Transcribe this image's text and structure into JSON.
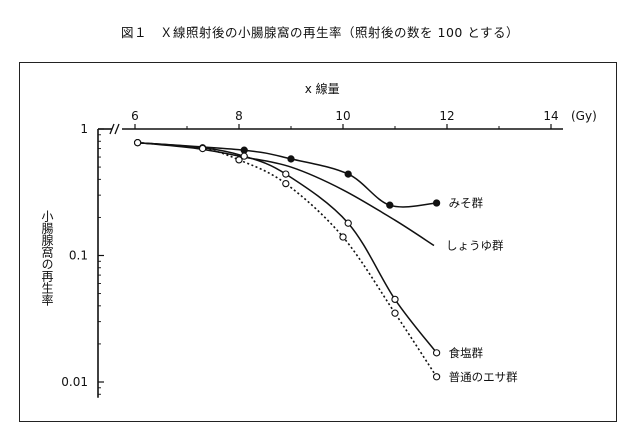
{
  "figure_title": "図１　Ｘ線照射後の小腸腺窩の再生率（照射後の数を 100 とする）",
  "chart_data": {
    "type": "line",
    "title": "図１　Ｘ線照射後の小腸腺窩の再生率（照射後の数を 100 とする）",
    "xlabel": "x 線量",
    "xunit": "(Gy)",
    "ylabel": "小腸腺窩の再生率",
    "xlim": [
      6,
      14
    ],
    "ylim": [
      0.0075,
      1
    ],
    "y_scale": "log",
    "axis_break": "x-axis between 0 and 6",
    "x_ticks": [
      6,
      8,
      10,
      12,
      14
    ],
    "x_tick_labels": [
      "6",
      "8",
      "10",
      "12",
      "14"
    ],
    "y_ticks": [
      1,
      0.1,
      0.01
    ],
    "y_tick_labels": [
      "1",
      "0.1",
      "0.01"
    ],
    "grid": false,
    "legend": "labels at line ends",
    "series": [
      {
        "name": "みそ群",
        "marker": "filled",
        "line": "solid",
        "x": [
          6.05,
          8.1,
          9.0,
          10.1,
          10.9,
          11.8
        ],
        "y": [
          0.78,
          0.68,
          0.58,
          0.44,
          0.25,
          0.26
        ]
      },
      {
        "name": "しょうゆ群",
        "marker": "none",
        "line": "solid",
        "x": [
          6.05,
          7.2,
          8.1,
          9.0,
          10.0,
          11.0,
          11.75
        ],
        "y": [
          0.78,
          0.7,
          0.6,
          0.5,
          0.33,
          0.19,
          0.12
        ]
      },
      {
        "name": "食塩群",
        "marker": "open",
        "line": "solid",
        "x": [
          6.05,
          7.3,
          8.1,
          8.9,
          10.1,
          11.0,
          11.8
        ],
        "y": [
          0.78,
          0.71,
          0.61,
          0.44,
          0.18,
          0.045,
          0.017
        ]
      },
      {
        "name": "普通のエサ群",
        "marker": "open",
        "line": "dotted",
        "x": [
          6.05,
          7.3,
          8.0,
          8.9,
          10.0,
          11.0,
          11.8
        ],
        "y": [
          0.78,
          0.7,
          0.57,
          0.37,
          0.14,
          0.035,
          0.011
        ]
      }
    ]
  }
}
